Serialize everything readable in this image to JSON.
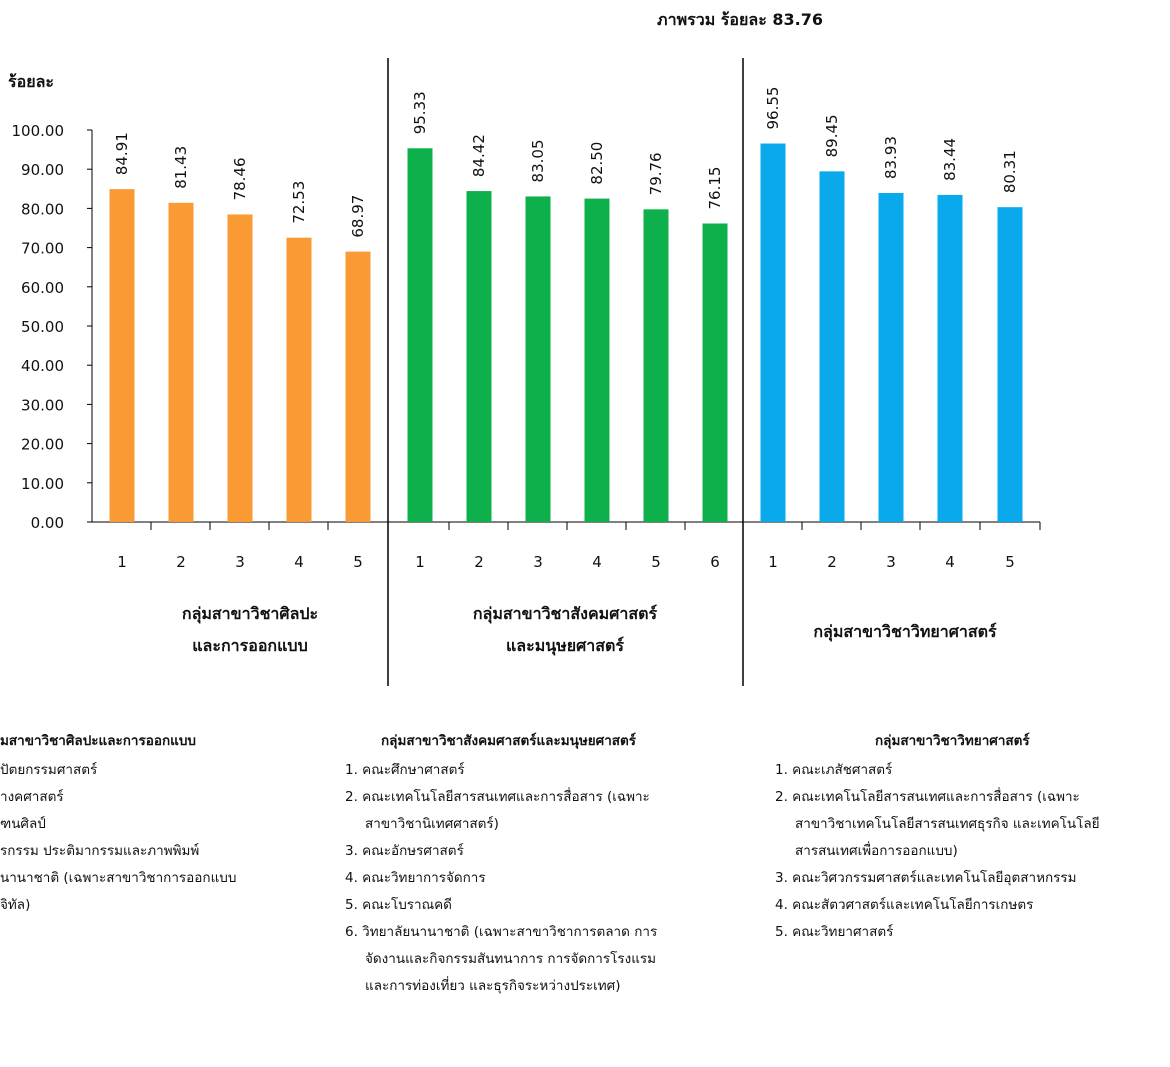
{
  "overall_label": "ภาพรวม ร้อยละ 83.76",
  "y_axis_label": "ร้อยละ",
  "colors": {
    "group1": "#f99a35",
    "group2": "#0db04b",
    "group3": "#0aa9ec"
  },
  "chart_data": {
    "type": "bar",
    "ylim": [
      0,
      100
    ],
    "y_ticks": [
      "0.00",
      "10.00",
      "20.00",
      "30.00",
      "40.00",
      "50.00",
      "60.00",
      "70.00",
      "80.00",
      "90.00",
      "100.00"
    ],
    "groups": [
      {
        "label_lines": [
          "กลุ่มสาขาวิชาศิลปะ",
          "และการออกแบบ"
        ],
        "categories": [
          "1",
          "2",
          "3",
          "4",
          "5"
        ],
        "values": [
          84.91,
          81.43,
          78.46,
          72.53,
          68.97
        ],
        "value_labels": [
          "84.91",
          "81.43",
          "78.46",
          "72.53",
          "68.97"
        ],
        "color": "#f99a35"
      },
      {
        "label_lines": [
          "กลุ่มสาขาวิชาสังคมศาสตร์",
          "และมนุษยศาสตร์"
        ],
        "categories": [
          "1",
          "2",
          "3",
          "4",
          "5",
          "6"
        ],
        "values": [
          95.33,
          84.42,
          83.05,
          82.5,
          79.76,
          76.15
        ],
        "value_labels": [
          "95.33",
          "84.42",
          "83.05",
          "82.50",
          "79.76",
          "76.15"
        ],
        "color": "#0db04b"
      },
      {
        "label_lines": [
          "กลุ่มสาขาวิชาวิทยาศาสตร์"
        ],
        "categories": [
          "1",
          "2",
          "3",
          "4",
          "5"
        ],
        "values": [
          96.55,
          89.45,
          83.93,
          83.44,
          80.31
        ],
        "value_labels": [
          "96.55",
          "89.45",
          "83.93",
          "83.44",
          "80.31"
        ],
        "color": "#0aa9ec"
      }
    ]
  },
  "legend": [
    {
      "title": "มสาขาวิชาศิลปะและการออกแบบ",
      "items": [
        "ปัตยกรรมศาสตร์",
        "างคศาสตร์",
        "ฑนศิลป์",
        "รกรรม ประติมากรรมและภาพพิมพ์",
        "นานาชาติ (เฉพาะสาขาวิชาการออกแบบ",
        "จิทัล)"
      ]
    },
    {
      "title": "กลุ่มสาขาวิชาสังคมศาสตร์และมนุษยศาสตร์",
      "items": [
        "1. คณะศึกษาศาสตร์",
        "2. คณะเทคโนโลยีสารสนเทศและการสื่อสาร (เฉพาะ",
        "สาขาวิชานิเทศศาสตร์)",
        "3. คณะอักษรศาสตร์",
        "4. คณะวิทยาการจัดการ",
        "5. คณะโบราณคดี",
        "6. วิทยาลัยนานาชาติ (เฉพาะสาขาวิชาการตลาด การ",
        "จัดงานและกิจกรรมสันทนาการ การจัดการโรงแรม",
        "และการท่องเที่ยว และธุรกิจระหว่างประเทศ)"
      ]
    },
    {
      "title": "กลุ่มสาขาวิชาวิทยาศาสตร์",
      "items": [
        "1. คณะเภสัชศาสตร์",
        "2. คณะเทคโนโลยีสารสนเทศและการสื่อสาร (เฉพาะ",
        "สาขาวิชาเทคโนโลยีสารสนเทศธุรกิจ และเทคโนโลยี",
        "สารสนเทศเพื่อการออกแบบ)",
        "3. คณะวิศวกรรมศาสตร์และเทคโนโลยีอุตสาหกรรม",
        "4. คณะสัตวศาสตร์และเทคโนโลยีการเกษตร",
        "5. คณะวิทยาศาสตร์"
      ]
    }
  ]
}
